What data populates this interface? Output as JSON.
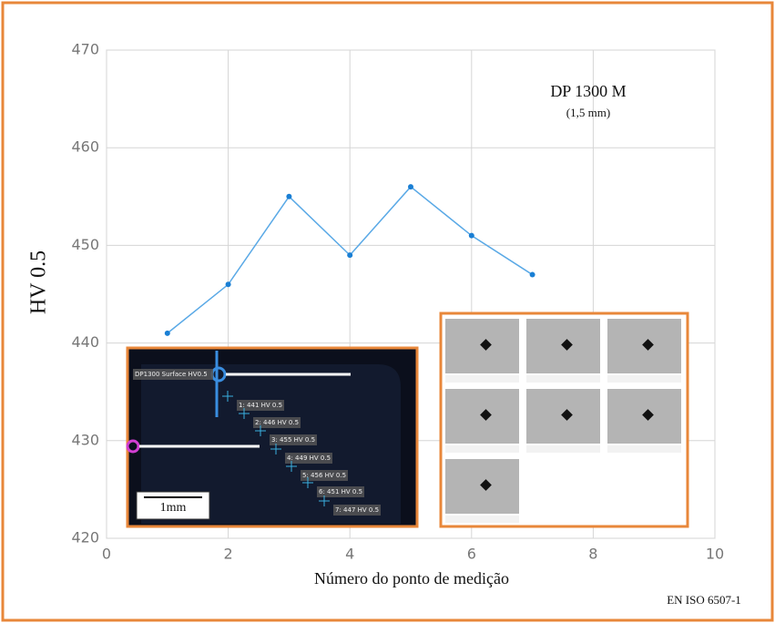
{
  "chart_data": {
    "type": "line",
    "title": "DP 1300 M",
    "subtitle": "(1,5 mm)",
    "x_label": "Número do ponto de medição",
    "y_label": "HV 0.5",
    "footnote": "EN ISO 6507-1",
    "x": [
      1,
      2,
      3,
      4,
      5,
      6,
      7
    ],
    "series": [
      {
        "name": "HV 0.5",
        "color": "#5aa9e6",
        "values": [
          441,
          446,
          455,
          449,
          456,
          451,
          447
        ]
      }
    ],
    "xlim": [
      0,
      10
    ],
    "xticks": [
      0,
      2,
      4,
      6,
      8,
      10
    ],
    "ylim": [
      420,
      470
    ],
    "yticks": [
      420,
      430,
      440,
      450,
      460,
      470
    ],
    "grid": true,
    "inset_labels": [
      "DP1300 Surface HV0.5",
      "1: 441 HV 0.5",
      "2: 446 HV 0.5",
      "3: 455 HV 0.5",
      "4: 449 HV 0.5",
      "5: 456 HV 0.5",
      "6: 451 HV 0.5",
      "7: 447 HV 0.5"
    ],
    "scale_bar": "1mm"
  }
}
